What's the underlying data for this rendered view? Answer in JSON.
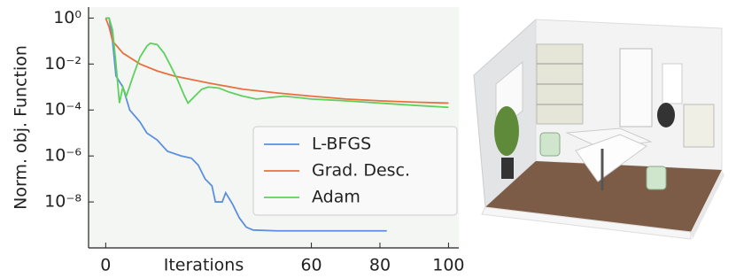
{
  "chart_data": {
    "type": "line",
    "xlabel": "Iterations",
    "ylabel": "Norm. obj. Function",
    "xlim": [
      -5,
      103
    ],
    "xticks": [
      0,
      60,
      80,
      100
    ],
    "ylim": [
      1e-10,
      3
    ],
    "log_y": true,
    "yticks": [
      {
        "value": 1,
        "label": "10⁰"
      },
      {
        "value": 0.01,
        "label": "10⁻²"
      },
      {
        "value": 0.0001,
        "label": "10⁻⁴"
      },
      {
        "value": 1e-06,
        "label": "10⁻⁶"
      },
      {
        "value": 1e-08,
        "label": "10⁻⁸"
      }
    ],
    "legend": "lower right",
    "series": [
      {
        "name": "L-BFGS",
        "color": "#5b8fe0",
        "x": [
          0,
          1,
          2,
          3,
          5,
          7,
          10,
          12,
          15,
          18,
          22,
          25,
          27,
          29,
          31,
          32,
          34,
          35,
          37,
          39,
          41,
          43,
          50,
          60,
          70,
          82
        ],
        "values": [
          1,
          1,
          0.1,
          0.003,
          0.001,
          0.0001,
          3e-05,
          1e-05,
          5e-06,
          1.6e-06,
          1e-06,
          8e-07,
          4e-07,
          1e-07,
          5e-08,
          1e-08,
          1e-08,
          2.5e-08,
          8e-09,
          2e-09,
          8e-10,
          6e-10,
          5.5e-10,
          5.5e-10,
          5.5e-10,
          5.5e-10
        ]
      },
      {
        "name": "Grad. Desc.",
        "color": "#e8703f",
        "x": [
          0,
          1,
          2,
          5,
          10,
          15,
          20,
          30,
          40,
          50,
          60,
          70,
          80,
          90,
          100
        ],
        "values": [
          1,
          0.4,
          0.1,
          0.03,
          0.01,
          0.005,
          0.003,
          0.0015,
          0.0008,
          0.00055,
          0.0004,
          0.0003,
          0.00025,
          0.00022,
          0.0002
        ]
      },
      {
        "name": "Adam",
        "color": "#5ed05e",
        "x": [
          0,
          1,
          2,
          3,
          4,
          5,
          6,
          8,
          10,
          12,
          13,
          15,
          17,
          19,
          21,
          23,
          24,
          26,
          28,
          30,
          33,
          36,
          40,
          44,
          48,
          52,
          56,
          60,
          70,
          80,
          90,
          100
        ],
        "values": [
          1,
          1,
          0.3,
          0.01,
          0.0002,
          0.001,
          0.0004,
          0.003,
          0.02,
          0.06,
          0.08,
          0.07,
          0.03,
          0.008,
          0.002,
          0.0004,
          0.0002,
          0.0004,
          0.0008,
          0.001,
          0.0009,
          0.0006,
          0.0004,
          0.0003,
          0.00035,
          0.0004,
          0.00035,
          0.0003,
          0.00025,
          0.0002,
          0.00016,
          0.00013
        ]
      }
    ]
  }
}
